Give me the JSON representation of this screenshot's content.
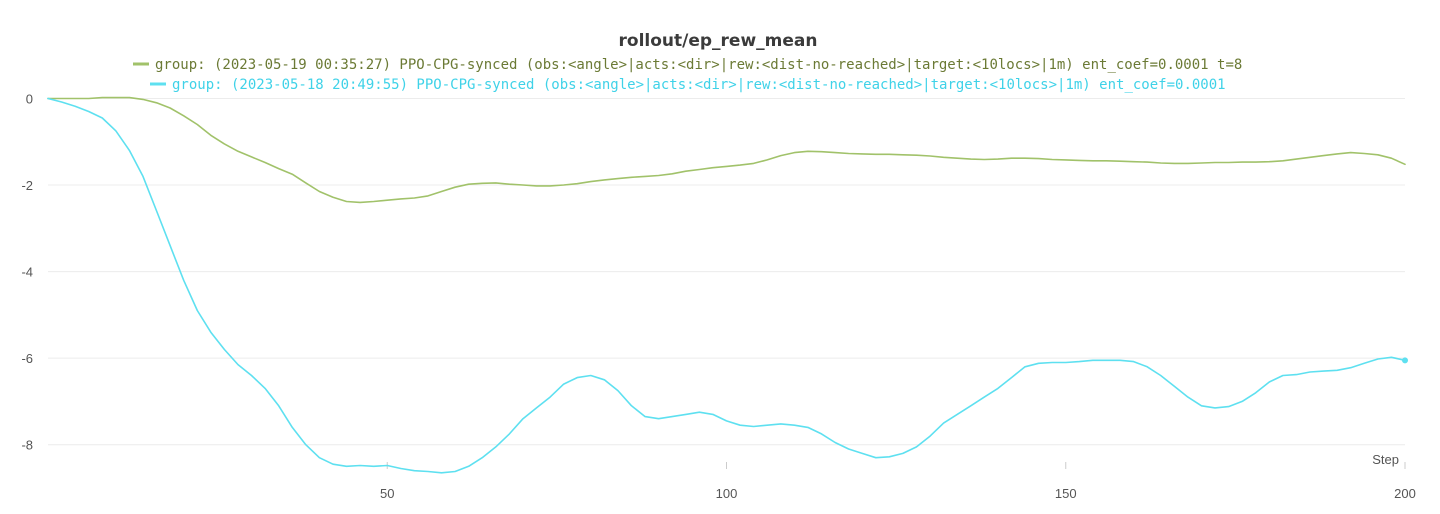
{
  "chart_data": {
    "type": "line",
    "title": "rollout/ep_rew_mean",
    "xlabel": "Step",
    "ylabel": "",
    "xlim": [
      0,
      200
    ],
    "ylim": [
      -8.7,
      0.15
    ],
    "x_ticks": [
      50,
      100,
      150,
      200
    ],
    "y_ticks": [
      0,
      -2,
      -4,
      -6,
      -8
    ],
    "grid": "horizontal",
    "legend_position": "top-center",
    "series": [
      {
        "name": "group: (2023-05-19 00:35:27) PPO-CPG-synced (obs:<angle>|acts:<dir>|rew:<dist-no-reached>|target:<10locs>|1m) ent_coef=0.0001 t=8",
        "color": "#a1c26a",
        "points": [
          [
            0,
            0
          ],
          [
            2,
            0
          ],
          [
            4,
            0
          ],
          [
            6,
            0
          ],
          [
            8,
            0.02
          ],
          [
            10,
            0.02
          ],
          [
            12,
            0.02
          ],
          [
            14,
            -0.02
          ],
          [
            16,
            -0.1
          ],
          [
            18,
            -0.22
          ],
          [
            20,
            -0.4
          ],
          [
            22,
            -0.6
          ],
          [
            24,
            -0.85
          ],
          [
            26,
            -1.05
          ],
          [
            28,
            -1.22
          ],
          [
            30,
            -1.35
          ],
          [
            32,
            -1.48
          ],
          [
            34,
            -1.62
          ],
          [
            36,
            -1.75
          ],
          [
            38,
            -1.95
          ],
          [
            40,
            -2.15
          ],
          [
            42,
            -2.28
          ],
          [
            44,
            -2.38
          ],
          [
            46,
            -2.4
          ],
          [
            48,
            -2.38
          ],
          [
            50,
            -2.35
          ],
          [
            52,
            -2.32
          ],
          [
            54,
            -2.3
          ],
          [
            56,
            -2.25
          ],
          [
            58,
            -2.15
          ],
          [
            60,
            -2.05
          ],
          [
            62,
            -1.98
          ],
          [
            64,
            -1.96
          ],
          [
            66,
            -1.95
          ],
          [
            68,
            -1.98
          ],
          [
            70,
            -2.0
          ],
          [
            72,
            -2.02
          ],
          [
            74,
            -2.02
          ],
          [
            76,
            -2.0
          ],
          [
            78,
            -1.97
          ],
          [
            80,
            -1.92
          ],
          [
            82,
            -1.88
          ],
          [
            84,
            -1.85
          ],
          [
            86,
            -1.82
          ],
          [
            88,
            -1.8
          ],
          [
            90,
            -1.78
          ],
          [
            92,
            -1.74
          ],
          [
            94,
            -1.68
          ],
          [
            96,
            -1.64
          ],
          [
            98,
            -1.6
          ],
          [
            100,
            -1.57
          ],
          [
            102,
            -1.54
          ],
          [
            104,
            -1.5
          ],
          [
            106,
            -1.42
          ],
          [
            108,
            -1.32
          ],
          [
            110,
            -1.25
          ],
          [
            112,
            -1.22
          ],
          [
            114,
            -1.23
          ],
          [
            116,
            -1.25
          ],
          [
            118,
            -1.27
          ],
          [
            120,
            -1.28
          ],
          [
            122,
            -1.29
          ],
          [
            124,
            -1.29
          ],
          [
            126,
            -1.3
          ],
          [
            128,
            -1.31
          ],
          [
            130,
            -1.33
          ],
          [
            132,
            -1.36
          ],
          [
            134,
            -1.38
          ],
          [
            136,
            -1.4
          ],
          [
            138,
            -1.41
          ],
          [
            140,
            -1.4
          ],
          [
            142,
            -1.38
          ],
          [
            144,
            -1.38
          ],
          [
            146,
            -1.39
          ],
          [
            148,
            -1.41
          ],
          [
            150,
            -1.42
          ],
          [
            152,
            -1.43
          ],
          [
            154,
            -1.44
          ],
          [
            156,
            -1.44
          ],
          [
            158,
            -1.45
          ],
          [
            160,
            -1.46
          ],
          [
            162,
            -1.47
          ],
          [
            164,
            -1.49
          ],
          [
            166,
            -1.5
          ],
          [
            168,
            -1.5
          ],
          [
            170,
            -1.49
          ],
          [
            172,
            -1.48
          ],
          [
            174,
            -1.48
          ],
          [
            176,
            -1.47
          ],
          [
            178,
            -1.47
          ],
          [
            180,
            -1.46
          ],
          [
            182,
            -1.44
          ],
          [
            184,
            -1.4
          ],
          [
            186,
            -1.36
          ],
          [
            188,
            -1.32
          ],
          [
            190,
            -1.28
          ],
          [
            192,
            -1.25
          ],
          [
            194,
            -1.27
          ],
          [
            196,
            -1.3
          ],
          [
            198,
            -1.38
          ],
          [
            200,
            -1.52
          ]
        ]
      },
      {
        "name": "group: (2023-05-18 20:49:55) PPO-CPG-synced (obs:<angle>|acts:<dir>|rew:<dist-no-reached>|target:<10locs>|1m) ent_coef=0.0001",
        "color": "#5ee0f0",
        "points": [
          [
            0,
            0
          ],
          [
            2,
            -0.08
          ],
          [
            4,
            -0.18
          ],
          [
            6,
            -0.3
          ],
          [
            8,
            -0.45
          ],
          [
            10,
            -0.75
          ],
          [
            12,
            -1.2
          ],
          [
            14,
            -1.8
          ],
          [
            16,
            -2.6
          ],
          [
            18,
            -3.4
          ],
          [
            20,
            -4.2
          ],
          [
            22,
            -4.9
          ],
          [
            24,
            -5.4
          ],
          [
            26,
            -5.8
          ],
          [
            28,
            -6.15
          ],
          [
            30,
            -6.4
          ],
          [
            32,
            -6.7
          ],
          [
            34,
            -7.1
          ],
          [
            36,
            -7.6
          ],
          [
            38,
            -8.0
          ],
          [
            40,
            -8.3
          ],
          [
            42,
            -8.45
          ],
          [
            44,
            -8.5
          ],
          [
            46,
            -8.48
          ],
          [
            48,
            -8.5
          ],
          [
            50,
            -8.48
          ],
          [
            52,
            -8.55
          ],
          [
            54,
            -8.6
          ],
          [
            56,
            -8.62
          ],
          [
            58,
            -8.65
          ],
          [
            60,
            -8.62
          ],
          [
            62,
            -8.5
          ],
          [
            64,
            -8.3
          ],
          [
            66,
            -8.05
          ],
          [
            68,
            -7.75
          ],
          [
            70,
            -7.4
          ],
          [
            72,
            -7.15
          ],
          [
            74,
            -6.9
          ],
          [
            76,
            -6.6
          ],
          [
            78,
            -6.45
          ],
          [
            80,
            -6.4
          ],
          [
            82,
            -6.5
          ],
          [
            84,
            -6.75
          ],
          [
            86,
            -7.1
          ],
          [
            88,
            -7.35
          ],
          [
            90,
            -7.4
          ],
          [
            92,
            -7.35
          ],
          [
            94,
            -7.3
          ],
          [
            96,
            -7.25
          ],
          [
            98,
            -7.3
          ],
          [
            100,
            -7.45
          ],
          [
            102,
            -7.55
          ],
          [
            104,
            -7.58
          ],
          [
            106,
            -7.55
          ],
          [
            108,
            -7.52
          ],
          [
            110,
            -7.55
          ],
          [
            112,
            -7.6
          ],
          [
            114,
            -7.75
          ],
          [
            116,
            -7.95
          ],
          [
            118,
            -8.1
          ],
          [
            120,
            -8.2
          ],
          [
            122,
            -8.3
          ],
          [
            124,
            -8.28
          ],
          [
            126,
            -8.2
          ],
          [
            128,
            -8.05
          ],
          [
            130,
            -7.8
          ],
          [
            132,
            -7.5
          ],
          [
            134,
            -7.3
          ],
          [
            136,
            -7.1
          ],
          [
            138,
            -6.9
          ],
          [
            140,
            -6.7
          ],
          [
            142,
            -6.45
          ],
          [
            144,
            -6.2
          ],
          [
            146,
            -6.12
          ],
          [
            148,
            -6.1
          ],
          [
            150,
            -6.1
          ],
          [
            152,
            -6.08
          ],
          [
            154,
            -6.05
          ],
          [
            156,
            -6.05
          ],
          [
            158,
            -6.05
          ],
          [
            160,
            -6.08
          ],
          [
            162,
            -6.2
          ],
          [
            164,
            -6.4
          ],
          [
            166,
            -6.65
          ],
          [
            168,
            -6.9
          ],
          [
            170,
            -7.1
          ],
          [
            172,
            -7.15
          ],
          [
            174,
            -7.12
          ],
          [
            176,
            -7.0
          ],
          [
            178,
            -6.8
          ],
          [
            180,
            -6.55
          ],
          [
            182,
            -6.4
          ],
          [
            184,
            -6.38
          ],
          [
            186,
            -6.32
          ],
          [
            188,
            -6.3
          ],
          [
            190,
            -6.28
          ],
          [
            192,
            -6.22
          ],
          [
            194,
            -6.12
          ],
          [
            196,
            -6.02
          ],
          [
            198,
            -5.98
          ],
          [
            200,
            -6.05
          ]
        ]
      }
    ]
  }
}
